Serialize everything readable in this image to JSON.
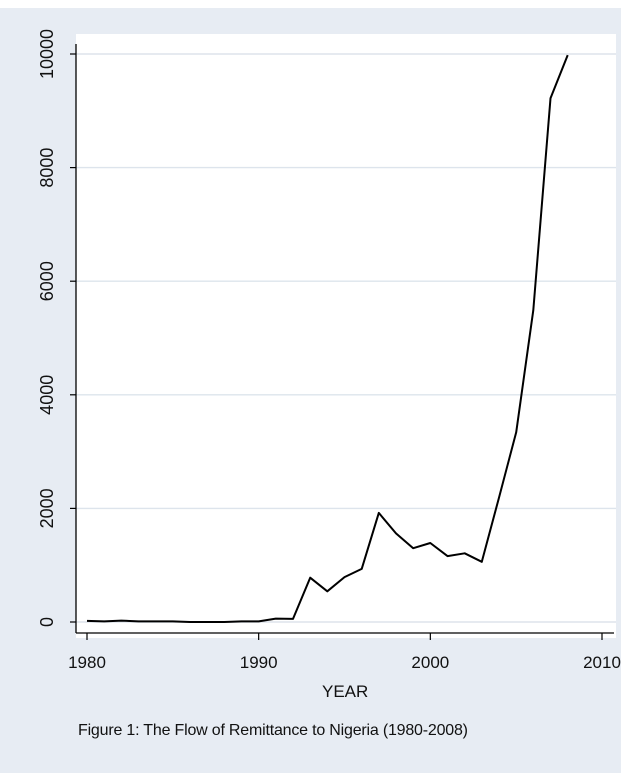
{
  "caption": "Figure 1: The Flow of Remittance to Nigeria (1980-2008)",
  "chart_data": {
    "type": "line",
    "title": "",
    "xlabel": "YEAR",
    "ylabel": "",
    "xlim": [
      1980,
      2010
    ],
    "ylim": [
      0,
      10000
    ],
    "x_ticks": [
      1980,
      1990,
      2000,
      2010
    ],
    "y_ticks": [
      0,
      2000,
      4000,
      6000,
      8000,
      10000
    ],
    "grid": true,
    "series": [
      {
        "color": "#000000",
        "x": [
          1980,
          1981,
          1982,
          1983,
          1984,
          1985,
          1986,
          1987,
          1988,
          1989,
          1990,
          1991,
          1992,
          1993,
          1994,
          1995,
          1996,
          1997,
          1998,
          1999,
          2000,
          2001,
          2002,
          2003,
          2004,
          2005,
          2006,
          2007,
          2008
        ],
        "values": [
          20,
          10,
          25,
          10,
          10,
          10,
          0,
          0,
          0,
          10,
          10,
          60,
          55,
          780,
          540,
          790,
          935,
          1920,
          1560,
          1300,
          1390,
          1160,
          1210,
          1060,
          2190,
          3340,
          5490,
          9220,
          9980
        ]
      }
    ],
    "colors": {
      "background": "#e7ecf3",
      "plot_area": "#ffffff",
      "grid": "#dde4ec",
      "line": "#000000"
    }
  }
}
